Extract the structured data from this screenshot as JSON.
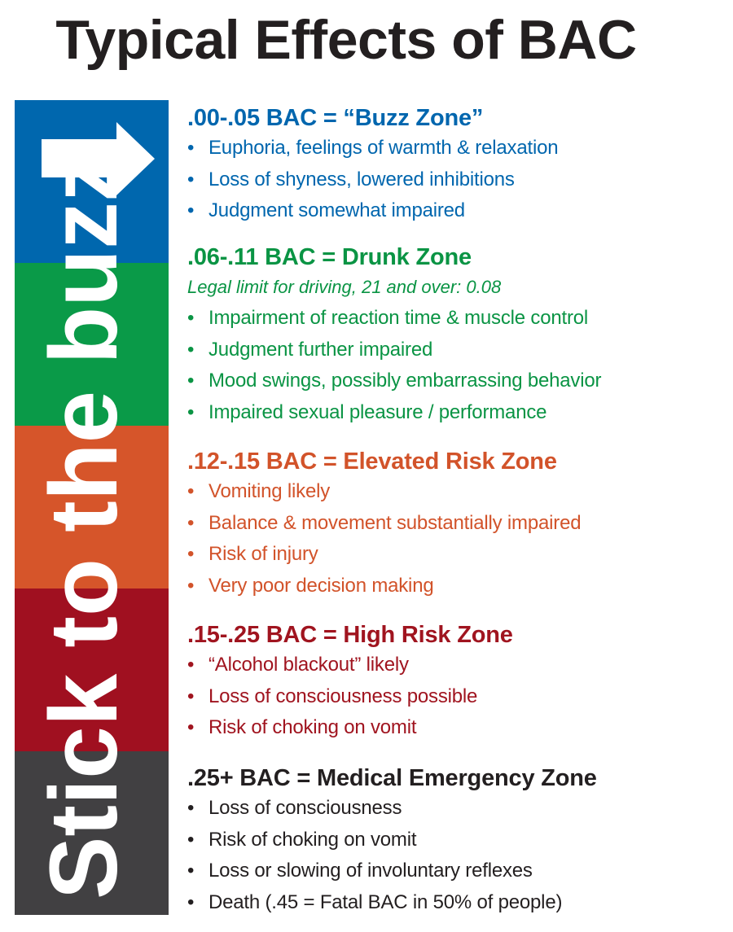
{
  "title": "Typical Effects of BAC",
  "side_banner": {
    "text": "Stick to the buzz",
    "icon": "right-arrow-icon",
    "colors": [
      "#0067ae",
      "#0a9a48",
      "#d6552a",
      "#a01020",
      "#414042"
    ]
  },
  "sections": [
    {
      "heading": ".00-.05 BAC = “Buzz Zone”",
      "color": "#0066ae",
      "bullets": [
        "Euphoria, feelings of warmth & relaxation",
        "Loss of shyness, lowered inhibitions",
        "Judgment somewhat impaired"
      ]
    },
    {
      "heading": ".06-.11 BAC = Drunk Zone",
      "color": "#0a9444",
      "note": "Legal limit for driving, 21 and over: 0.08",
      "bullets": [
        "Impairment of reaction time & muscle control",
        "Judgment further impaired",
        "Mood swings, possibly embarrassing behavior",
        "Impaired sexual pleasure / performance"
      ]
    },
    {
      "heading": ".12-.15 BAC = Elevated Risk Zone",
      "color": "#d2532a",
      "bullets": [
        "Vomiting likely",
        "Balance & movement substantially impaired",
        "Risk of injury",
        "Very poor decision making"
      ]
    },
    {
      "heading": ".15-.25 BAC = High Risk Zone",
      "color": "#a0141f",
      "bullets": [
        "“Alcohol blackout” likely",
        "Loss of consciousness possible",
        "Risk of choking on vomit"
      ]
    },
    {
      "heading": ".25+ BAC = Medical Emergency Zone",
      "color": "#231f20",
      "bullets": [
        "Loss of consciousness",
        "Risk of choking on vomit",
        "Loss or slowing of involuntary reflexes",
        "Death (.45 = Fatal BAC in 50% of people)"
      ]
    }
  ]
}
